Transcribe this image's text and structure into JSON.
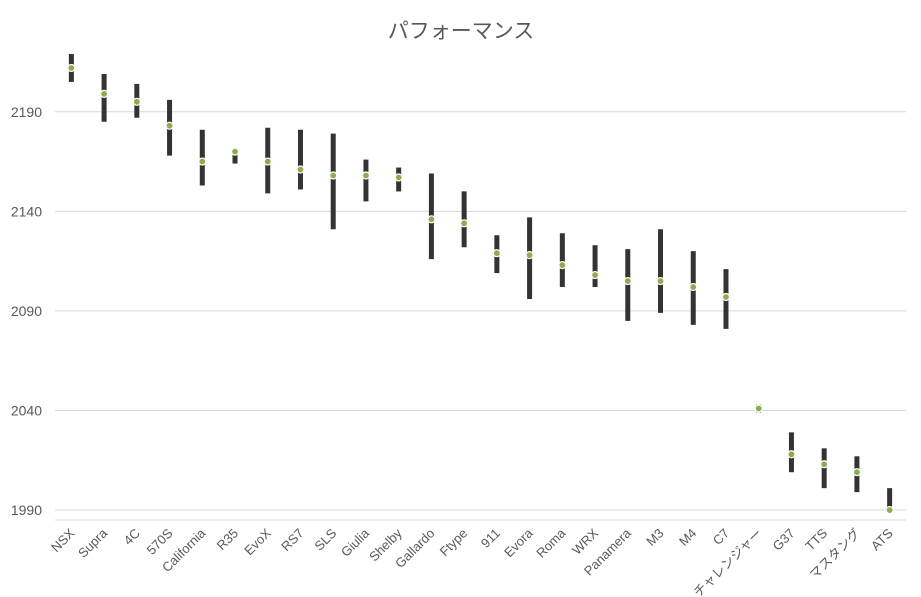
{
  "chart_data": {
    "type": "stock",
    "title": "パフォーマンス",
    "xlabel": "",
    "ylabel": "",
    "ylim": [
      1985,
      2215
    ],
    "yticks": [
      1990,
      2040,
      2090,
      2140,
      2190
    ],
    "grid": true,
    "legend": "none",
    "colors": {
      "range_bar": "#333333",
      "marker": "#8cad4f",
      "grid": "#d9d9d9",
      "text": "#595959"
    },
    "categories": [
      "NSX",
      "Supra",
      "4C",
      "570S",
      "California",
      "R35",
      "EvoX",
      "RS7",
      "SLS",
      "Giulia",
      "Shelby",
      "Gallardo",
      "Ftype",
      "911",
      "Evora",
      "Roma",
      "WRX",
      "Panamera",
      "M3",
      "M4",
      "C7",
      "チャレンジャー",
      "G37",
      "TTS",
      "マスタング",
      "ATS"
    ],
    "high": [
      2219,
      2209,
      2204,
      2196,
      2181,
      2171,
      2182,
      2181,
      2179,
      2166,
      2162,
      2159,
      2150,
      2128,
      2137,
      2129,
      2123,
      2121,
      2131,
      2120,
      2111,
      2043,
      2029,
      2021,
      2017,
      2001
    ],
    "low": [
      2205,
      2185,
      2187,
      2168,
      2153,
      2164,
      2149,
      2151,
      2131,
      2145,
      2150,
      2116,
      2122,
      2109,
      2096,
      2102,
      2102,
      2085,
      2089,
      2083,
      2081,
      2039,
      2009,
      2001,
      1999,
      1990
    ],
    "value": [
      2212,
      2199,
      2195,
      2183,
      2165,
      2170,
      2165,
      2161,
      2158,
      2158,
      2157,
      2136,
      2134,
      2119,
      2118,
      2113,
      2108,
      2105,
      2105,
      2102,
      2097,
      2041,
      2018,
      2013,
      2009,
      1990
    ]
  }
}
